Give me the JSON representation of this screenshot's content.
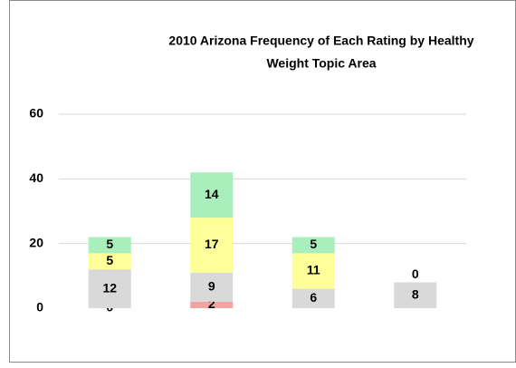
{
  "chart_data": {
    "type": "stacked_bar",
    "title": [
      "2010 Arizona Frequency of Each Rating by Healthy",
      "Weight Topic Area"
    ],
    "categories": [
      null,
      null,
      null,
      null
    ],
    "series": [
      {
        "color": "#f4a3a3",
        "values": [
          0,
          2,
          null,
          null
        ]
      },
      {
        "color": "#d9d9d9",
        "values": [
          12,
          9,
          6,
          8
        ]
      },
      {
        "color": "#ffff99",
        "values": [
          5,
          17,
          11,
          null
        ]
      },
      {
        "color": "#a8efbb",
        "values": [
          5,
          14,
          5,
          0
        ]
      }
    ],
    "ylim": [
      0,
      60
    ],
    "yticks": [
      0,
      20,
      40,
      60
    ],
    "grid": true
  }
}
